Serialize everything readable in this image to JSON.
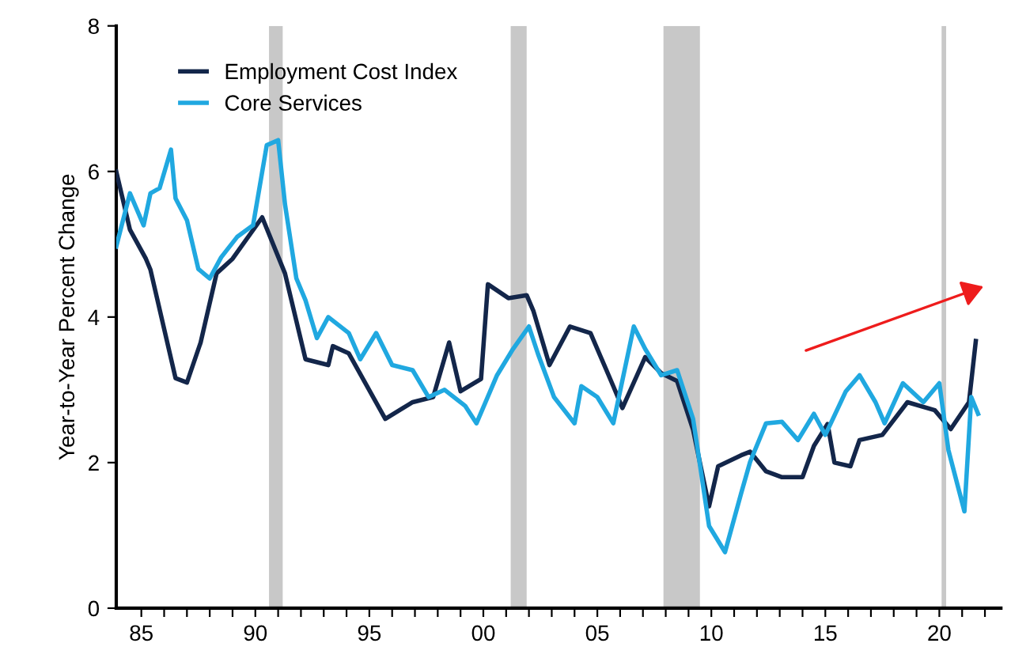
{
  "chart_data": {
    "type": "line",
    "ylabel": "Year-to-Year Percent Change",
    "xlim": [
      1983.9,
      2022.7
    ],
    "xticks": [
      {
        "value": 1985,
        "label": "85"
      },
      {
        "value": 1986,
        "label": null
      },
      {
        "value": 1987,
        "label": null
      },
      {
        "value": 1988,
        "label": null
      },
      {
        "value": 1989,
        "label": null
      },
      {
        "value": 1990,
        "label": "90"
      },
      {
        "value": 1991,
        "label": null
      },
      {
        "value": 1992,
        "label": null
      },
      {
        "value": 1993,
        "label": null
      },
      {
        "value": 1994,
        "label": null
      },
      {
        "value": 1995,
        "label": "95"
      },
      {
        "value": 1996,
        "label": null
      },
      {
        "value": 1997,
        "label": null
      },
      {
        "value": 1998,
        "label": null
      },
      {
        "value": 1999,
        "label": null
      },
      {
        "value": 2000,
        "label": "00"
      },
      {
        "value": 2001,
        "label": null
      },
      {
        "value": 2002,
        "label": null
      },
      {
        "value": 2003,
        "label": null
      },
      {
        "value": 2004,
        "label": null
      },
      {
        "value": 2005,
        "label": "05"
      },
      {
        "value": 2006,
        "label": null
      },
      {
        "value": 2007,
        "label": null
      },
      {
        "value": 2008,
        "label": null
      },
      {
        "value": 2009,
        "label": null
      },
      {
        "value": 2010,
        "label": "10"
      },
      {
        "value": 2011,
        "label": null
      },
      {
        "value": 2012,
        "label": null
      },
      {
        "value": 2013,
        "label": null
      },
      {
        "value": 2014,
        "label": null
      },
      {
        "value": 2015,
        "label": "15"
      },
      {
        "value": 2016,
        "label": null
      },
      {
        "value": 2017,
        "label": null
      },
      {
        "value": 2018,
        "label": null
      },
      {
        "value": 2019,
        "label": null
      },
      {
        "value": 2020,
        "label": "20"
      },
      {
        "value": 2021,
        "label": null
      },
      {
        "value": 2022,
        "label": null
      }
    ],
    "ylim": [
      0,
      8
    ],
    "yticks": [
      0,
      2,
      4,
      6,
      8
    ],
    "grid": false,
    "legend": "top left",
    "bands": [
      {
        "axis": "x",
        "from": 1990.6,
        "to": 1991.2,
        "color": "#c8c8c8"
      },
      {
        "axis": "x",
        "from": 2001.2,
        "to": 2001.9,
        "color": "#c8c8c8"
      },
      {
        "axis": "x",
        "from": 2007.9,
        "to": 2009.5,
        "color": "#c8c8c8"
      },
      {
        "axis": "x",
        "from": 2020.1,
        "to": 2020.3,
        "color": "#c8c8c8"
      }
    ],
    "series": [
      {
        "name": "Employment Cost Index",
        "color": "#13264a",
        "x": [
          1983.9,
          1984.5,
          1985.2,
          1985.4,
          1986.5,
          1987.0,
          1987.6,
          1988.3,
          1989.0,
          1990.3,
          1991.3,
          1992.2,
          1993.2,
          1993.4,
          1994.1,
          1995.7,
          1996.9,
          1997.8,
          1998.5,
          1999.0,
          1999.9,
          2000.2,
          2001.1,
          2001.9,
          2002.2,
          2002.9,
          2003.8,
          2004.7,
          2005.7,
          2006.1,
          2007.1,
          2007.8,
          2008.5,
          2009.2,
          2009.9,
          2010.3,
          2011.3,
          2011.7,
          2012.4,
          2013.1,
          2014.0,
          2014.5,
          2015.1,
          2015.4,
          2016.1,
          2016.5,
          2017.5,
          2018.6,
          2019.8,
          2020.5,
          2021.3,
          2021.6
        ],
        "values": [
          6.0,
          5.2,
          4.8,
          4.65,
          3.16,
          3.1,
          3.65,
          4.6,
          4.8,
          5.37,
          4.6,
          3.42,
          3.34,
          3.6,
          3.5,
          2.6,
          2.83,
          2.9,
          3.65,
          2.98,
          3.15,
          4.45,
          4.26,
          4.3,
          4.08,
          3.34,
          3.87,
          3.78,
          3.05,
          2.75,
          3.45,
          3.23,
          3.12,
          2.45,
          1.4,
          1.95,
          2.1,
          2.15,
          1.88,
          1.8,
          1.8,
          2.23,
          2.53,
          2.0,
          1.95,
          2.31,
          2.38,
          2.83,
          2.72,
          2.46,
          2.83,
          3.67
        ]
      },
      {
        "name": "Core Services",
        "color": "#20a8e0",
        "x": [
          1983.9,
          1984.5,
          1985.1,
          1985.4,
          1985.8,
          1986.3,
          1986.5,
          1987.0,
          1987.5,
          1988.0,
          1988.5,
          1989.2,
          1989.9,
          1990.5,
          1991.0,
          1991.3,
          1991.8,
          1992.2,
          1992.7,
          1993.2,
          1994.1,
          1994.6,
          1995.3,
          1996.0,
          1996.9,
          1997.6,
          1998.3,
          1999.2,
          1999.7,
          2000.6,
          2001.3,
          2002.0,
          2002.4,
          2003.1,
          2004.0,
          2004.3,
          2005.0,
          2005.7,
          2006.6,
          2007.1,
          2007.8,
          2008.5,
          2009.2,
          2009.9,
          2010.6,
          2011.3,
          2011.7,
          2012.4,
          2013.1,
          2013.8,
          2014.5,
          2015.0,
          2015.9,
          2016.5,
          2017.2,
          2017.6,
          2018.4,
          2019.3,
          2020.0,
          2020.4,
          2021.1,
          2021.4,
          2021.7
        ],
        "values": [
          4.97,
          5.7,
          5.26,
          5.7,
          5.77,
          6.3,
          5.63,
          5.33,
          4.66,
          4.53,
          4.82,
          5.1,
          5.26,
          6.36,
          6.43,
          5.55,
          4.53,
          4.23,
          3.71,
          4.0,
          3.78,
          3.42,
          3.78,
          3.34,
          3.27,
          2.9,
          3.0,
          2.78,
          2.54,
          3.2,
          3.56,
          3.87,
          3.49,
          2.9,
          2.54,
          3.05,
          2.9,
          2.54,
          3.87,
          3.56,
          3.2,
          3.27,
          2.6,
          1.13,
          0.77,
          1.57,
          2.01,
          2.54,
          2.56,
          2.31,
          2.67,
          2.38,
          2.98,
          3.2,
          2.83,
          2.54,
          3.09,
          2.83,
          3.09,
          2.17,
          1.33,
          2.9,
          2.67
        ]
      }
    ]
  }
}
